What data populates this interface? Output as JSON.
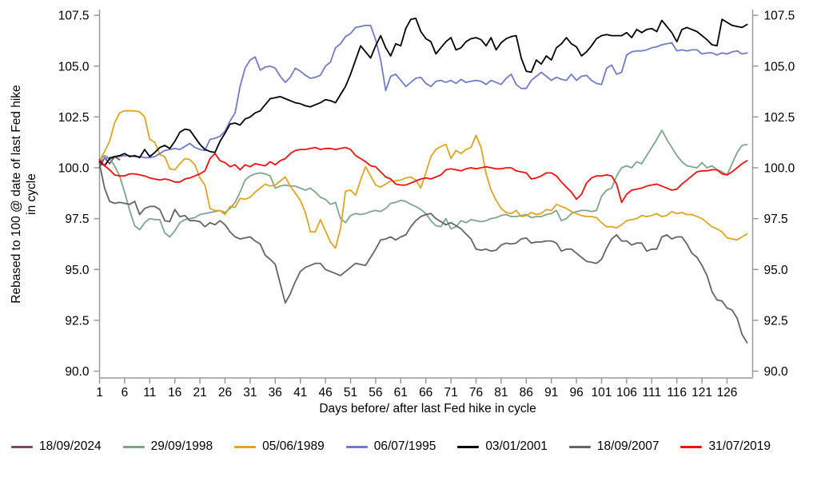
{
  "chart_data": {
    "type": "line",
    "title": "",
    "xlabel": "Days before/ after last Fed hike in cycle",
    "ylabel": "Rebased to 100 @ date of last Fed hike in cycle",
    "ylabel_line1": "Rebased to 100 @ date of last Fed hike",
    "ylabel_line2": "in cycle",
    "x_tick_labels": [
      "1",
      "6",
      "11",
      "16",
      "21",
      "26",
      "31",
      "36",
      "41",
      "46",
      "51",
      "56",
      "61",
      "66",
      "71",
      "76",
      "81",
      "86",
      "91",
      "96",
      "101",
      "106",
      "111",
      "116",
      "121",
      "126"
    ],
    "x_tick_values": [
      1,
      6,
      11,
      16,
      21,
      26,
      31,
      36,
      41,
      46,
      51,
      56,
      61,
      66,
      71,
      76,
      81,
      86,
      91,
      96,
      101,
      106,
      111,
      116,
      121,
      126
    ],
    "y_tick_labels": [
      "90.0",
      "92.5",
      "95.0",
      "97.5",
      "100.0",
      "102.5",
      "105.0",
      "107.5"
    ],
    "y_tick_values": [
      90,
      92.5,
      95,
      97.5,
      100,
      102.5,
      105,
      107.5
    ],
    "x_range": [
      1,
      130.5
    ],
    "y_range": [
      89.6,
      107.9
    ],
    "grid": false,
    "legend_position": "bottom",
    "axis_color": "#999999",
    "series": [
      {
        "name": "18/09/2024",
        "color": "#7c4a62",
        "start_day": 1,
        "values": [
          100.0,
          100.5,
          100.2,
          100.55,
          100.4
        ]
      },
      {
        "name": "29/09/1998",
        "color": "#7fa58c",
        "start_day": 1,
        "values": [
          100.4,
          100.6,
          100.45,
          100.1,
          99.6,
          98.8,
          97.9,
          97.15,
          96.95,
          97.3,
          97.5,
          97.45,
          97.45,
          96.8,
          96.6,
          96.9,
          97.3,
          97.45,
          97.5,
          97.55,
          97.7,
          97.75,
          97.8,
          97.85,
          97.9,
          97.8,
          98.0,
          98.3,
          98.8,
          99.4,
          99.6,
          99.7,
          99.75,
          99.7,
          99.6,
          99.0,
          99.1,
          99.15,
          99.1,
          99.1,
          99.0,
          98.9,
          99.0,
          98.8,
          98.55,
          98.45,
          98.2,
          98.3,
          97.5,
          97.3,
          97.65,
          97.75,
          97.7,
          97.75,
          97.85,
          97.9,
          97.85,
          98.0,
          98.25,
          98.3,
          98.4,
          98.35,
          98.2,
          98.1,
          97.95,
          97.75,
          97.4,
          97.15,
          97.1,
          97.5,
          97.0,
          97.1,
          97.4,
          97.3,
          97.45,
          97.4,
          97.35,
          97.4,
          97.5,
          97.55,
          97.65,
          97.7,
          97.6,
          97.6,
          97.65,
          97.7,
          97.55,
          97.6,
          97.6,
          97.7,
          97.75,
          97.9,
          97.4,
          97.5,
          97.75,
          97.85,
          97.9,
          97.9,
          97.85,
          97.9,
          98.6,
          98.9,
          99.0,
          99.6,
          100.0,
          100.1,
          100.0,
          100.3,
          100.2,
          100.6,
          101.0,
          101.4,
          101.85,
          101.4,
          101.0,
          100.6,
          100.3,
          100.1,
          100.05,
          100.0,
          100.25,
          100.0,
          100.1,
          99.9,
          99.8,
          99.65,
          100.2,
          100.75,
          101.1,
          101.15
        ]
      },
      {
        "name": "05/06/1989",
        "color": "#dca625",
        "start_day": 1,
        "values": [
          100.35,
          100.8,
          101.3,
          102.2,
          102.7,
          102.8,
          102.8,
          102.8,
          102.75,
          102.5,
          101.4,
          101.25,
          100.65,
          100.55,
          99.95,
          99.9,
          100.2,
          100.45,
          100.4,
          100.15,
          99.5,
          99.15,
          98.0,
          97.9,
          97.9,
          97.7,
          98.1,
          98.05,
          98.5,
          98.45,
          98.55,
          98.8,
          99.0,
          99.2,
          99.1,
          99.15,
          99.35,
          99.55,
          99.1,
          98.75,
          98.4,
          97.8,
          96.85,
          96.85,
          97.45,
          96.9,
          96.35,
          96.05,
          97.0,
          98.85,
          98.9,
          98.65,
          99.4,
          100.05,
          99.6,
          99.15,
          99.05,
          99.2,
          99.35,
          99.35,
          99.4,
          99.5,
          99.55,
          99.4,
          99.0,
          99.75,
          100.55,
          100.9,
          101.05,
          101.15,
          100.45,
          100.85,
          100.7,
          100.9,
          101.0,
          101.6,
          101.0,
          99.7,
          98.9,
          98.4,
          98.0,
          97.8,
          97.75,
          97.9,
          97.6,
          97.65,
          97.8,
          97.7,
          97.75,
          97.95,
          97.9,
          98.2,
          98.1,
          98.0,
          97.85,
          97.75,
          97.65,
          97.6,
          97.6,
          97.55,
          97.3,
          97.1,
          97.1,
          97.05,
          97.2,
          97.4,
          97.45,
          97.5,
          97.65,
          97.6,
          97.65,
          97.75,
          97.6,
          97.65,
          97.85,
          97.75,
          97.8,
          97.7,
          97.7,
          97.6,
          97.5,
          97.3,
          97.1,
          97.0,
          96.85,
          96.55,
          96.5,
          96.45,
          96.6,
          96.75
        ]
      },
      {
        "name": "06/07/1995",
        "color": "#727bc5",
        "start_day": 1,
        "values": [
          100.3,
          100.45,
          100.5,
          100.55,
          100.55,
          100.6,
          100.6,
          100.55,
          100.55,
          100.5,
          100.5,
          100.55,
          100.7,
          100.85,
          100.9,
          100.95,
          100.9,
          101.05,
          101.2,
          101.0,
          100.9,
          100.85,
          101.4,
          101.45,
          101.55,
          101.8,
          102.3,
          102.7,
          104.0,
          104.9,
          105.3,
          105.45,
          104.8,
          104.95,
          105.0,
          104.9,
          104.5,
          104.2,
          104.45,
          104.9,
          104.75,
          104.55,
          104.4,
          104.45,
          104.55,
          105.0,
          105.2,
          105.9,
          106.1,
          106.45,
          106.6,
          106.9,
          106.95,
          107.0,
          107.0,
          106.3,
          105.3,
          103.8,
          104.5,
          104.6,
          104.3,
          104.0,
          104.2,
          104.4,
          104.45,
          104.15,
          104.0,
          104.25,
          104.3,
          104.2,
          104.3,
          104.15,
          104.35,
          104.2,
          104.25,
          104.3,
          104.25,
          104.1,
          104.3,
          104.2,
          104.1,
          104.4,
          104.6,
          104.1,
          103.9,
          103.9,
          104.3,
          104.5,
          104.7,
          104.5,
          104.3,
          104.45,
          104.35,
          104.3,
          104.6,
          104.3,
          104.5,
          104.55,
          104.3,
          104.15,
          104.1,
          104.9,
          105.05,
          104.6,
          104.7,
          105.55,
          105.7,
          105.75,
          105.75,
          105.8,
          105.9,
          105.95,
          106.05,
          106.1,
          106.15,
          105.75,
          105.8,
          105.75,
          105.8,
          105.8,
          105.6,
          105.65,
          105.65,
          105.55,
          105.65,
          105.6,
          105.7,
          105.75,
          105.6,
          105.65
        ]
      },
      {
        "name": "03/01/2001",
        "color": "#000000",
        "start_day": 1,
        "values": [
          100.3,
          100.1,
          100.45,
          100.55,
          100.6,
          100.7,
          100.55,
          100.6,
          100.5,
          100.9,
          100.55,
          100.75,
          101.0,
          101.1,
          100.95,
          101.3,
          101.75,
          101.9,
          101.85,
          101.5,
          101.15,
          100.9,
          100.8,
          100.75,
          101.3,
          101.7,
          102.15,
          102.2,
          102.1,
          102.4,
          102.5,
          102.7,
          102.8,
          103.1,
          103.4,
          103.45,
          103.5,
          103.4,
          103.3,
          103.2,
          103.15,
          103.05,
          103.0,
          103.1,
          103.2,
          103.35,
          103.3,
          103.2,
          103.6,
          104.0,
          104.6,
          105.3,
          106.0,
          105.7,
          105.4,
          106.0,
          106.5,
          105.9,
          105.5,
          106.1,
          106.0,
          106.85,
          107.3,
          107.35,
          106.7,
          106.35,
          106.2,
          105.6,
          105.9,
          106.2,
          106.4,
          105.8,
          105.9,
          106.2,
          106.35,
          106.4,
          106.3,
          106.0,
          106.4,
          105.8,
          106.15,
          106.35,
          106.45,
          106.5,
          105.4,
          104.75,
          104.7,
          105.3,
          105.1,
          105.5,
          105.3,
          105.9,
          106.1,
          106.4,
          106.1,
          105.95,
          105.5,
          105.7,
          106.0,
          106.35,
          106.5,
          106.55,
          106.5,
          106.5,
          106.5,
          106.65,
          106.4,
          106.8,
          106.65,
          106.8,
          106.85,
          106.7,
          107.25,
          106.95,
          106.65,
          106.2,
          106.8,
          106.9,
          106.8,
          106.7,
          106.5,
          106.3,
          106.05,
          106.0,
          107.3,
          107.15,
          107.0,
          106.95,
          106.9,
          107.05
        ]
      },
      {
        "name": "18/09/2007",
        "color": "#646464",
        "start_day": 1,
        "values": [
          100.2,
          99.0,
          98.35,
          98.25,
          98.3,
          98.25,
          98.2,
          98.35,
          97.7,
          98.0,
          98.1,
          98.1,
          97.95,
          97.4,
          97.35,
          97.95,
          97.6,
          97.65,
          97.4,
          97.4,
          97.35,
          97.1,
          97.3,
          97.2,
          97.4,
          97.2,
          96.85,
          96.6,
          96.5,
          96.55,
          96.6,
          96.4,
          96.25,
          95.7,
          95.5,
          95.25,
          94.3,
          93.35,
          93.8,
          94.4,
          94.9,
          95.1,
          95.2,
          95.3,
          95.3,
          95.0,
          94.9,
          94.8,
          94.7,
          94.9,
          95.1,
          95.3,
          95.25,
          95.2,
          95.6,
          96.0,
          96.45,
          96.5,
          96.6,
          96.45,
          96.6,
          96.7,
          97.1,
          97.4,
          97.6,
          97.7,
          97.75,
          97.5,
          97.35,
          97.2,
          97.3,
          97.15,
          97.0,
          96.75,
          96.5,
          96.0,
          95.95,
          96.0,
          95.9,
          95.95,
          96.2,
          96.3,
          96.25,
          96.3,
          96.5,
          96.55,
          96.3,
          96.35,
          96.35,
          96.4,
          96.4,
          96.3,
          95.9,
          96.0,
          96.0,
          95.8,
          95.6,
          95.4,
          95.35,
          95.3,
          95.5,
          96.05,
          96.5,
          96.7,
          96.4,
          96.4,
          96.2,
          96.3,
          96.3,
          95.9,
          96.0,
          96.0,
          96.6,
          96.7,
          96.5,
          96.6,
          96.6,
          96.25,
          95.8,
          95.6,
          95.2,
          94.7,
          93.9,
          93.5,
          93.45,
          93.1,
          93.0,
          92.6,
          91.8,
          91.4
        ]
      },
      {
        "name": "31/07/2019",
        "color": "#ee1111",
        "start_day": 1,
        "values": [
          100.4,
          100.1,
          99.9,
          99.65,
          99.6,
          99.6,
          99.7,
          99.7,
          99.65,
          99.6,
          99.5,
          99.45,
          99.4,
          99.45,
          99.4,
          99.3,
          99.3,
          99.45,
          99.5,
          99.6,
          99.7,
          99.85,
          100.45,
          100.7,
          100.35,
          100.25,
          100.05,
          100.15,
          99.9,
          100.15,
          100.05,
          100.2,
          100.15,
          100.1,
          100.3,
          100.15,
          100.35,
          100.45,
          100.7,
          100.85,
          100.9,
          100.9,
          100.95,
          101.0,
          100.9,
          100.95,
          100.95,
          100.9,
          100.95,
          101.0,
          100.9,
          100.6,
          100.45,
          100.3,
          100.1,
          100.05,
          99.8,
          99.55,
          99.45,
          99.2,
          99.15,
          99.15,
          99.25,
          99.35,
          99.45,
          99.5,
          99.45,
          99.55,
          99.65,
          99.9,
          99.95,
          99.9,
          99.85,
          99.95,
          100.0,
          99.95,
          100.0,
          100.05,
          100.0,
          99.95,
          99.95,
          100.0,
          100.0,
          99.85,
          99.8,
          99.75,
          99.45,
          99.5,
          99.6,
          99.75,
          99.75,
          99.6,
          99.3,
          99.05,
          98.8,
          98.45,
          98.7,
          99.25,
          99.5,
          99.6,
          99.6,
          99.65,
          99.6,
          99.2,
          98.3,
          98.7,
          98.9,
          98.95,
          99.0,
          99.1,
          99.15,
          99.2,
          99.1,
          99.0,
          98.9,
          98.95,
          99.2,
          99.4,
          99.6,
          99.8,
          99.85,
          99.85,
          99.9,
          99.9,
          99.7,
          99.65,
          99.8,
          100.0,
          100.2,
          100.35
        ]
      }
    ]
  }
}
